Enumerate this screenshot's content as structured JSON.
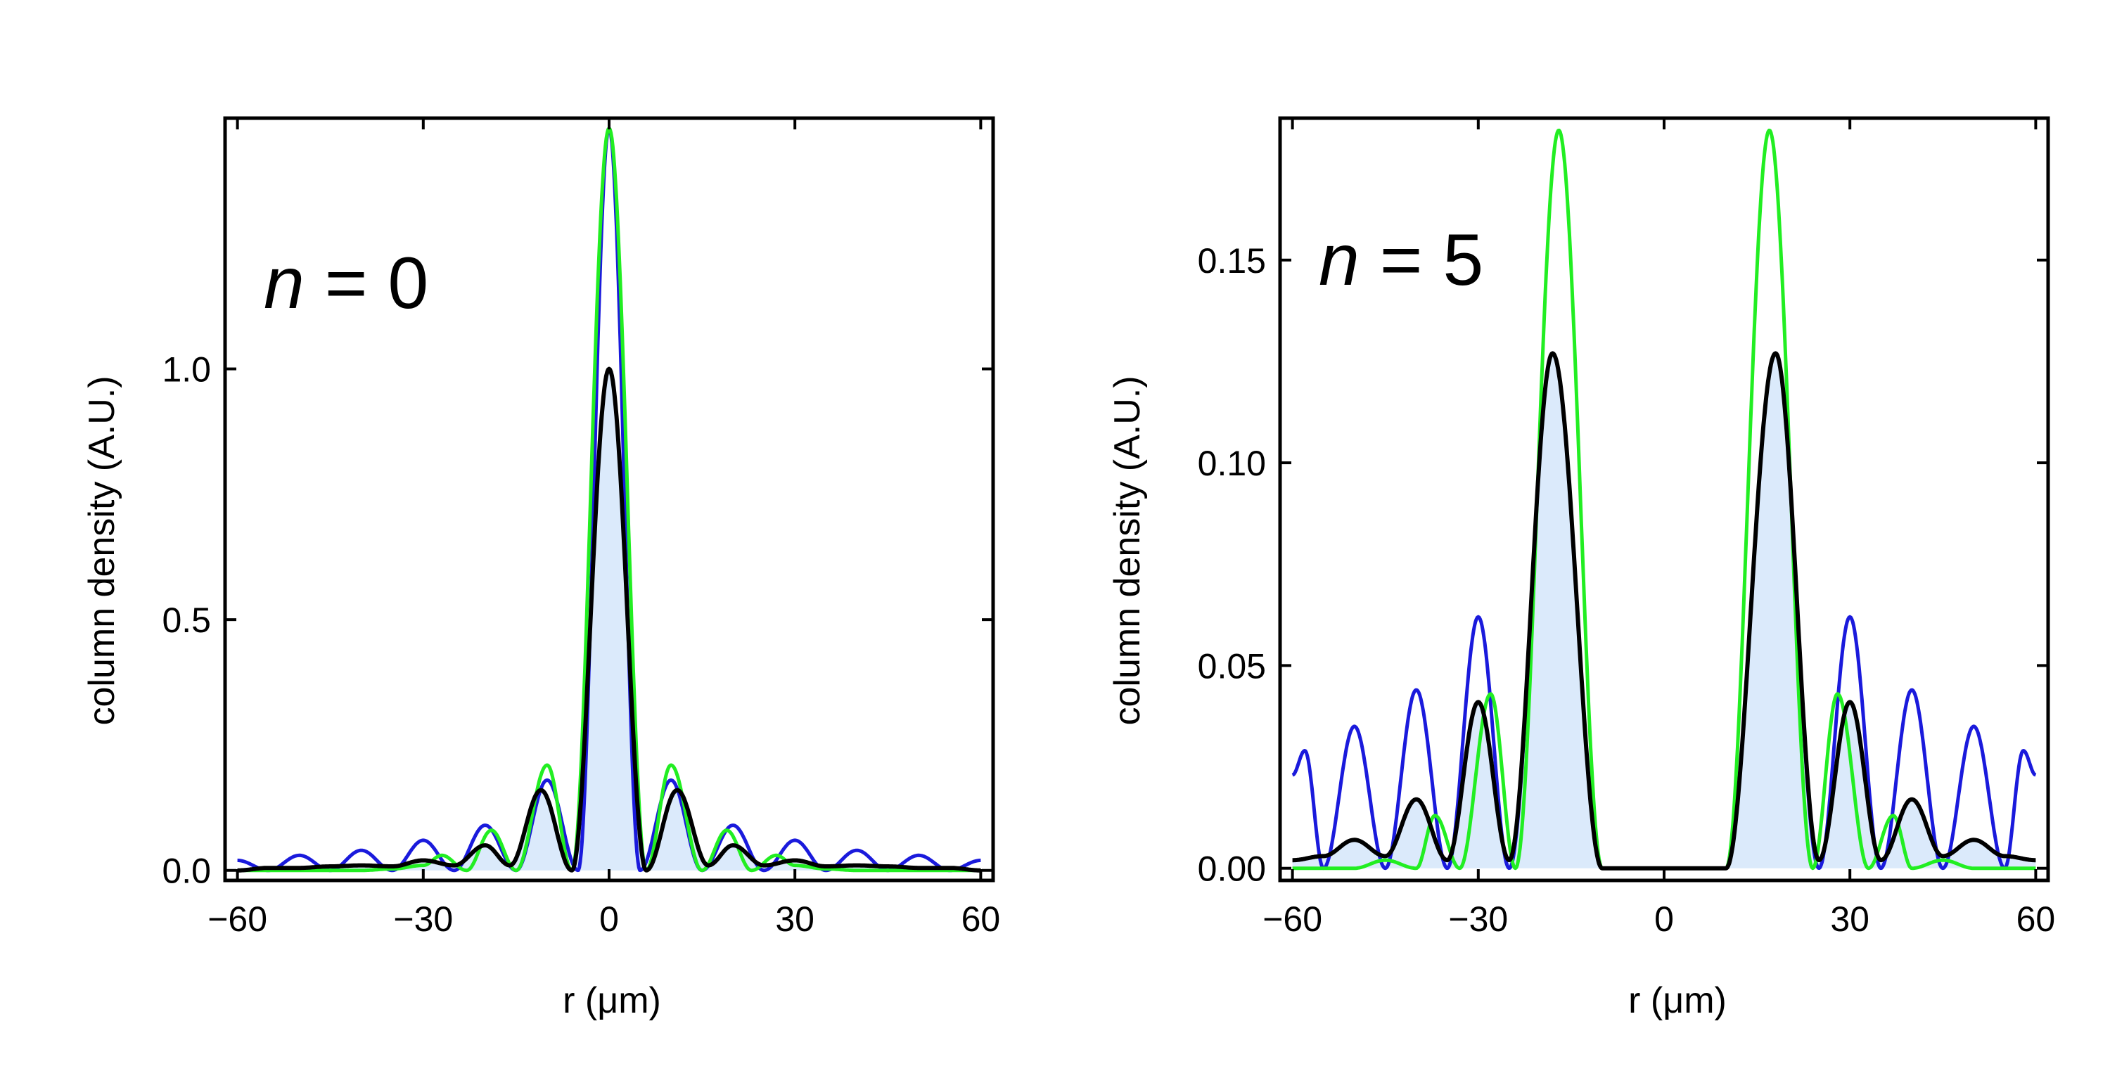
{
  "chart_data": [
    {
      "type": "line",
      "panel_label": {
        "variable": "n",
        "text": " = 0"
      },
      "xlabel": "r (μm)",
      "ylabel": "column density (A.U.)",
      "xlim": [
        -62,
        62
      ],
      "ylim": [
        -0.02,
        1.5
      ],
      "xticks": [
        -60,
        -30,
        0,
        30,
        60
      ],
      "xtick_labels": [
        "−60",
        "−30",
        "0",
        "30",
        "60"
      ],
      "yticks": [
        0.0,
        0.5,
        1.0
      ],
      "ytick_labels": [
        "0.0",
        "0.5",
        "1.0"
      ],
      "grid": false,
      "colors": {
        "blue": "#1a1adc",
        "green": "#22ee22",
        "black": "#000000",
        "fill": "#dbeafb"
      },
      "series": [
        {
          "name": "blue",
          "x": [
            -60,
            -55,
            -50,
            -45,
            -40,
            -35,
            -30,
            -25,
            -20,
            -15,
            -10,
            -5,
            0,
            5,
            10,
            15,
            20,
            25,
            30,
            35,
            40,
            45,
            50,
            55,
            60
          ],
          "values": [
            0.02,
            0.0,
            0.03,
            0.0,
            0.04,
            0.0,
            0.06,
            0.0,
            0.09,
            0.0,
            0.18,
            0.0,
            1.48,
            0.0,
            0.18,
            0.0,
            0.09,
            0.0,
            0.06,
            0.0,
            0.04,
            0.0,
            0.03,
            0.0,
            0.02
          ]
        },
        {
          "name": "green",
          "x": [
            -60,
            -50,
            -40,
            -35,
            -30,
            -27,
            -23,
            -19,
            -15,
            -10,
            -6,
            0,
            6,
            10,
            15,
            19,
            23,
            27,
            30,
            35,
            40,
            50,
            60
          ],
          "values": [
            0.0,
            0.0,
            0.0,
            0.003,
            0.01,
            0.03,
            0.0,
            0.08,
            0.0,
            0.21,
            0.0,
            1.48,
            0.0,
            0.21,
            0.0,
            0.08,
            0.0,
            0.03,
            0.01,
            0.003,
            0.0,
            0.0,
            0.0
          ]
        },
        {
          "name": "black",
          "x": [
            -60,
            -55,
            -50,
            -45,
            -40,
            -35,
            -30,
            -25,
            -20,
            -16,
            -11,
            -6,
            0,
            6,
            11,
            16,
            20,
            25,
            30,
            35,
            40,
            45,
            50,
            55,
            60
          ],
          "values": [
            0.0,
            0.005,
            0.005,
            0.008,
            0.01,
            0.008,
            0.02,
            0.01,
            0.05,
            0.01,
            0.16,
            0.0,
            1.0,
            0.0,
            0.16,
            0.01,
            0.05,
            0.01,
            0.02,
            0.008,
            0.01,
            0.008,
            0.005,
            0.005,
            0.0
          ]
        }
      ]
    },
    {
      "type": "line",
      "panel_label": {
        "variable": "n",
        "text": " = 5"
      },
      "xlabel": "r (μm)",
      "ylabel": "column density (A.U.)",
      "xlim": [
        -62,
        62
      ],
      "ylim": [
        -0.003,
        0.185
      ],
      "xticks": [
        -60,
        -30,
        0,
        30,
        60
      ],
      "xtick_labels": [
        "−60",
        "−30",
        "0",
        "30",
        "60"
      ],
      "yticks": [
        0.0,
        0.05,
        0.1,
        0.15
      ],
      "ytick_labels": [
        "0.00",
        "0.05",
        "0.10",
        "0.15"
      ],
      "grid": false,
      "colors": {
        "blue": "#1a1adc",
        "green": "#22ee22",
        "black": "#000000",
        "fill": "#dbeafb"
      },
      "series": [
        {
          "name": "blue",
          "x": [
            -60,
            -58,
            -55,
            -50,
            -45,
            -40,
            -35,
            -30,
            -25,
            -18,
            -10,
            0,
            10,
            18,
            25,
            30,
            35,
            40,
            45,
            50,
            55,
            58,
            60
          ],
          "values": [
            0.023,
            0.029,
            0.0,
            0.035,
            0.0,
            0.044,
            0.0,
            0.062,
            0.0,
            0.127,
            0.0,
            0.0,
            0.0,
            0.127,
            0.0,
            0.062,
            0.0,
            0.044,
            0.0,
            0.035,
            0.0,
            0.029,
            0.023
          ]
        },
        {
          "name": "green",
          "x": [
            -60,
            -50,
            -45,
            -40,
            -37,
            -33,
            -28,
            -24,
            -17,
            -10,
            0,
            10,
            17,
            24,
            28,
            33,
            37,
            40,
            45,
            50,
            60
          ],
          "values": [
            0.0,
            0.0,
            0.002,
            0.0,
            0.013,
            0.0,
            0.043,
            0.0,
            0.182,
            0.0,
            0.0,
            0.0,
            0.182,
            0.0,
            0.043,
            0.0,
            0.013,
            0.0,
            0.002,
            0.0,
            0.0
          ]
        },
        {
          "name": "black",
          "x": [
            -60,
            -55,
            -50,
            -45,
            -40,
            -35,
            -30,
            -25,
            -18,
            -10,
            0,
            10,
            18,
            25,
            30,
            35,
            40,
            45,
            50,
            55,
            60
          ],
          "values": [
            0.002,
            0.003,
            0.007,
            0.003,
            0.017,
            0.002,
            0.041,
            0.002,
            0.127,
            0.0,
            0.0,
            0.0,
            0.127,
            0.002,
            0.041,
            0.002,
            0.017,
            0.003,
            0.007,
            0.003,
            0.002
          ]
        }
      ]
    }
  ]
}
